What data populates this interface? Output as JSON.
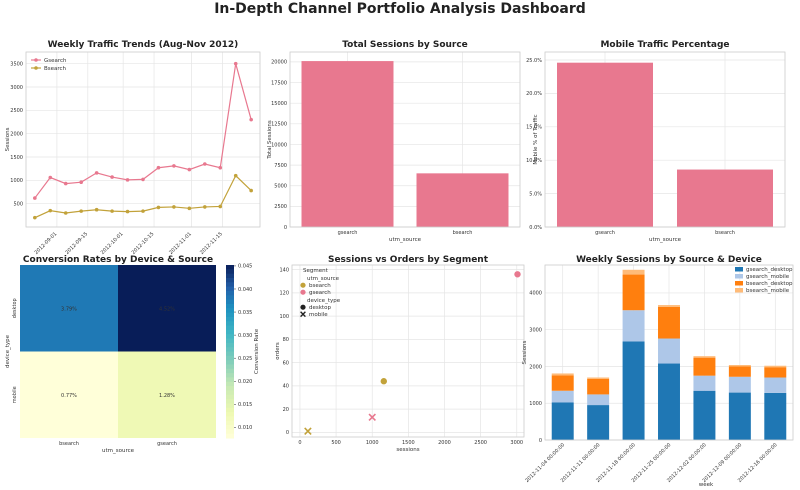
{
  "dashboard": {
    "title": "In-Depth Channel Portfolio Analysis Dashboard"
  },
  "colors": {
    "gsearch": "#e8788f",
    "bsearch": "#c2a23a",
    "gsearch_desktop": "#1f77b4",
    "gsearch_mobile": "#aec7e8",
    "bsearch_desktop": "#ff7f0e",
    "bsearch_mobile": "#ffbb78"
  },
  "chart_data": [
    {
      "id": "weekly-trends",
      "type": "line",
      "title": "Weekly Traffic Trends (Aug-Nov 2012)",
      "xlabel": "",
      "ylabel": "Sessions",
      "x": [
        "2012-08-22",
        "2012-08-29",
        "2012-09-05",
        "2012-09-12",
        "2012-09-19",
        "2012-09-26",
        "2012-10-03",
        "2012-10-10",
        "2012-10-17",
        "2012-10-24",
        "2012-10-31",
        "2012-11-07",
        "2012-11-14",
        "2012-11-21",
        "2012-11-28"
      ],
      "xticks": [
        "2012-09-01",
        "2012-09-15",
        "2012-10-01",
        "2012-10-15",
        "2012-11-01",
        "2012-11-15"
      ],
      "yticks": [
        500,
        1000,
        1500,
        2000,
        2500,
        3000,
        3500
      ],
      "ylim": [
        0,
        3750
      ],
      "legend": "top-left",
      "grid": true,
      "series": [
        {
          "name": "Gsearch",
          "values": [
            620,
            1060,
            930,
            960,
            1160,
            1070,
            1010,
            1020,
            1270,
            1310,
            1230,
            1350,
            1270,
            3500,
            2300
          ]
        },
        {
          "name": "Bsearch",
          "values": [
            200,
            350,
            300,
            340,
            370,
            340,
            330,
            340,
            420,
            430,
            400,
            430,
            440,
            1100,
            780
          ]
        }
      ]
    },
    {
      "id": "total-sessions",
      "type": "bar",
      "title": "Total Sessions by Source",
      "xlabel": "utm_source",
      "ylabel": "Total Sessions",
      "categories": [
        "gsearch",
        "bsearch"
      ],
      "values": [
        20100,
        6500
      ],
      "yticks": [
        0,
        2500,
        5000,
        7500,
        10000,
        12500,
        15000,
        17500,
        20000
      ],
      "ylim": [
        0,
        21200
      ],
      "grid": true
    },
    {
      "id": "mobile-pct",
      "type": "bar",
      "title": "Mobile Traffic Percentage",
      "xlabel": "utm_source",
      "ylabel": "Mobile % of Traffic",
      "categories": [
        "gsearch",
        "bsearch"
      ],
      "values": [
        24.6,
        8.6
      ],
      "yticks": [
        "0.0%",
        "5.0%",
        "10.0%",
        "15.0%",
        "20.0%",
        "25.0%"
      ],
      "ylim": [
        0,
        26.2
      ],
      "grid": true
    },
    {
      "id": "conversion-heatmap",
      "type": "heatmap",
      "title": "Conversion Rates by Device & Source",
      "xlabel": "utm_source",
      "ylabel": "device_type",
      "columns": [
        "bsearch",
        "gsearch"
      ],
      "rows": [
        "desktop",
        "mobile"
      ],
      "values": [
        [
          0.0379,
          0.0452
        ],
        [
          0.0077,
          0.0128
        ]
      ],
      "cell_labels": [
        [
          "3.79%",
          "4.52%"
        ],
        [
          "0.77%",
          "1.28%"
        ]
      ],
      "colorbar_label": "Conversion Rate",
      "colorbar_ticks": [
        "0.010",
        "0.015",
        "0.020",
        "0.025",
        "0.030",
        "0.035",
        "0.040",
        "0.045"
      ],
      "colorbar_range": [
        0.0077,
        0.0452
      ]
    },
    {
      "id": "sessions-vs-orders",
      "type": "scatter",
      "title": "Sessions vs Orders by Segment",
      "xlabel": "sessions",
      "ylabel": "orders",
      "xticks": [
        0,
        500,
        1000,
        1500,
        2000,
        2500,
        3000
      ],
      "yticks": [
        0,
        20,
        40,
        60,
        80,
        100,
        120,
        140
      ],
      "xlim": [
        -110,
        3100
      ],
      "ylim": [
        -4,
        144
      ],
      "legend": "top-left",
      "grid": true,
      "legend_titles": {
        "hue": "utm_source",
        "style": "device_type"
      },
      "legend_heading": "Segment",
      "hue_levels": [
        "bsearch",
        "gsearch"
      ],
      "style_levels": [
        "desktop",
        "mobile"
      ],
      "points": [
        {
          "source": "gsearch",
          "device": "desktop",
          "x": 3010,
          "y": 136
        },
        {
          "source": "bsearch",
          "device": "desktop",
          "x": 1160,
          "y": 44
        },
        {
          "source": "gsearch",
          "device": "mobile",
          "x": 1000,
          "y": 13
        },
        {
          "source": "bsearch",
          "device": "mobile",
          "x": 110,
          "y": 1
        }
      ]
    },
    {
      "id": "weekly-stacked",
      "type": "bar",
      "title": "Weekly Sessions by Source & Device",
      "xlabel": "week",
      "ylabel": "Sessions",
      "categories": [
        "2012-11-04 00:00:00",
        "2012-11-11 00:00:00",
        "2012-11-18 00:00:00",
        "2012-11-25 00:00:00",
        "2012-12-02 00:00:00",
        "2012-12-09 00:00:00",
        "2012-12-16 00:00:00"
      ],
      "yticks": [
        0,
        1000,
        2000,
        3000,
        4000
      ],
      "ylim": [
        0,
        4760
      ],
      "legend": "top-right",
      "grid": true,
      "series": [
        {
          "name": "gsearch_desktop",
          "values": [
            1020,
            950,
            2680,
            2080,
            1340,
            1290,
            1280
          ]
        },
        {
          "name": "gsearch_mobile",
          "values": [
            320,
            290,
            850,
            680,
            410,
            430,
            420
          ]
        },
        {
          "name": "bsearch_desktop",
          "values": [
            420,
            420,
            970,
            860,
            490,
            280,
            280
          ]
        },
        {
          "name": "bsearch_mobile",
          "values": [
            50,
            40,
            130,
            50,
            40,
            40,
            40
          ]
        }
      ]
    }
  ]
}
